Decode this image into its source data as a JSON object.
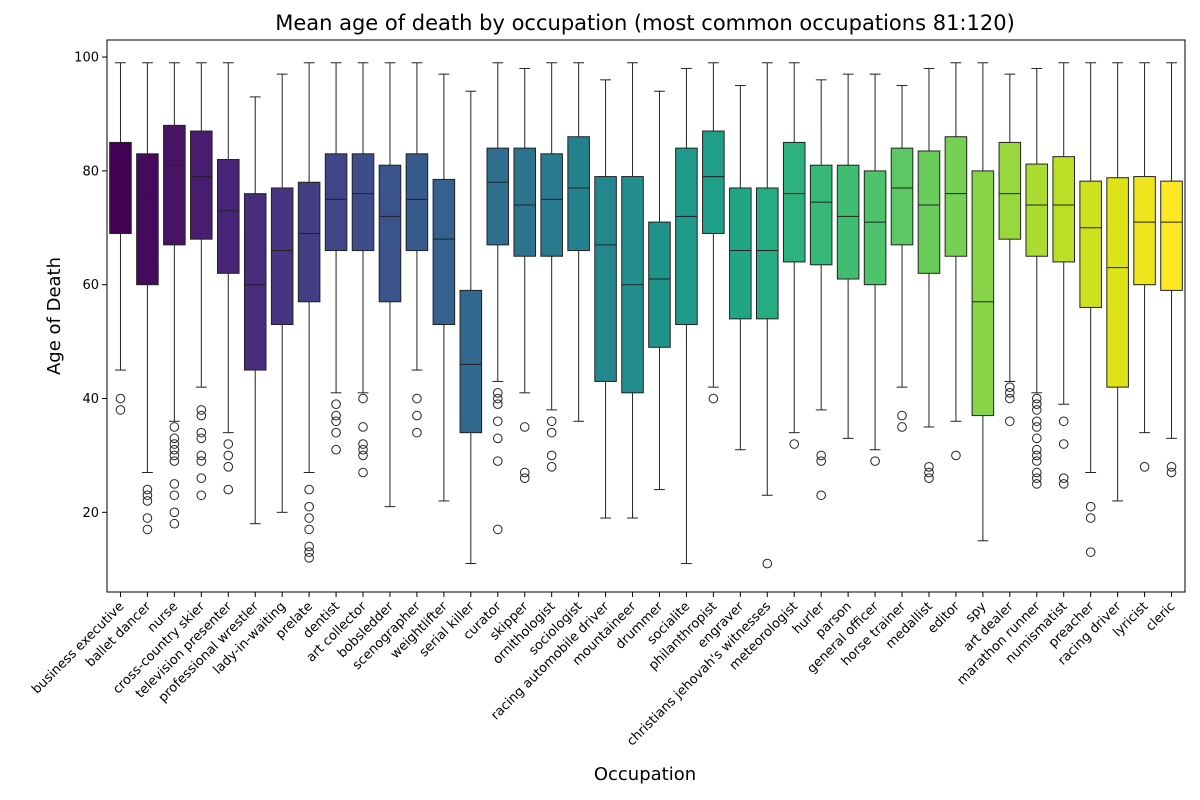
{
  "chart_data": {
    "type": "box",
    "title": "Mean age of death by occupation (most common occupations 81:120)",
    "xlabel": "Occupation",
    "ylabel": "Age of Death",
    "ylim": [
      6,
      103
    ],
    "yticks": [
      20,
      40,
      60,
      80,
      100
    ],
    "grid": false,
    "legend": "none",
    "colormap": "viridis",
    "colors": [
      "#440154",
      "#471365",
      "#482475",
      "#463480",
      "#414487",
      "#3b528b",
      "#355f8d",
      "#2f6c8e",
      "#2a788e",
      "#25848e",
      "#21918c",
      "#1e9c89",
      "#22a884",
      "#2fb47c",
      "#44bf70",
      "#5ec962",
      "#7ad151",
      "#9bd93c",
      "#bddf26",
      "#dfe318",
      "#fde725"
    ],
    "boxes": [
      {
        "category": "business executive",
        "whisker_low": 45,
        "q1": 69,
        "median": 76,
        "q3": 85,
        "whisker_high": 99,
        "outliers": [
          38,
          40
        ]
      },
      {
        "category": "ballet dancer",
        "whisker_low": 27,
        "q1": 60,
        "median": 75,
        "q3": 83,
        "whisker_high": 99,
        "outliers": [
          17,
          19,
          22,
          23,
          24
        ]
      },
      {
        "category": "nurse",
        "whisker_low": 36,
        "q1": 67,
        "median": 81,
        "q3": 88,
        "whisker_high": 99,
        "outliers": [
          18,
          20,
          23,
          25,
          29,
          30,
          31,
          32,
          33,
          35
        ]
      },
      {
        "category": "cross-country skier",
        "whisker_low": 42,
        "q1": 68,
        "median": 79,
        "q3": 87,
        "whisker_high": 99,
        "outliers": [
          23,
          26,
          29,
          30,
          33,
          34,
          37,
          38
        ]
      },
      {
        "category": "television presenter",
        "whisker_low": 34,
        "q1": 62,
        "median": 73,
        "q3": 82,
        "whisker_high": 99,
        "outliers": [
          24,
          28,
          30,
          32
        ]
      },
      {
        "category": "professional wrestler",
        "whisker_low": 18,
        "q1": 45,
        "median": 60,
        "q3": 76,
        "whisker_high": 93,
        "outliers": []
      },
      {
        "category": "lady-in-waiting",
        "whisker_low": 20,
        "q1": 53,
        "median": 66,
        "q3": 77,
        "whisker_high": 97,
        "outliers": []
      },
      {
        "category": "prelate",
        "whisker_low": 27,
        "q1": 57,
        "median": 69,
        "q3": 78,
        "whisker_high": 99,
        "outliers": [
          12,
          13,
          14,
          17,
          19,
          21,
          24
        ]
      },
      {
        "category": "dentist",
        "whisker_low": 41,
        "q1": 66,
        "median": 75,
        "q3": 83,
        "whisker_high": 99,
        "outliers": [
          31,
          34,
          36,
          37,
          39
        ]
      },
      {
        "category": "art collector",
        "whisker_low": 41,
        "q1": 66,
        "median": 76,
        "q3": 83,
        "whisker_high": 99,
        "outliers": [
          27,
          30,
          31,
          32,
          35,
          40
        ]
      },
      {
        "category": "bobsledder",
        "whisker_low": 21,
        "q1": 57,
        "median": 72,
        "q3": 81,
        "whisker_high": 99,
        "outliers": []
      },
      {
        "category": "scenographer",
        "whisker_low": 45,
        "q1": 66,
        "median": 75,
        "q3": 83,
        "whisker_high": 99,
        "outliers": [
          34,
          37,
          40
        ]
      },
      {
        "category": "weightlifter",
        "whisker_low": 22,
        "q1": 53,
        "median": 68,
        "q3": 78.5,
        "whisker_high": 97,
        "outliers": []
      },
      {
        "category": "serial killer",
        "whisker_low": 11,
        "q1": 34,
        "median": 46,
        "q3": 59,
        "whisker_high": 94,
        "outliers": []
      },
      {
        "category": "curator",
        "whisker_low": 43,
        "q1": 67,
        "median": 78,
        "q3": 84,
        "whisker_high": 99,
        "outliers": [
          17,
          29,
          33,
          36,
          39,
          40,
          41
        ]
      },
      {
        "category": "skipper",
        "whisker_low": 41,
        "q1": 65,
        "median": 74,
        "q3": 84,
        "whisker_high": 98,
        "outliers": [
          26,
          27,
          35
        ]
      },
      {
        "category": "ornithologist",
        "whisker_low": 38,
        "q1": 65,
        "median": 75,
        "q3": 83,
        "whisker_high": 99,
        "outliers": [
          28,
          30,
          34,
          36
        ]
      },
      {
        "category": "sociologist",
        "whisker_low": 36,
        "q1": 66,
        "median": 77,
        "q3": 86,
        "whisker_high": 99,
        "outliers": []
      },
      {
        "category": "racing automobile driver",
        "whisker_low": 19,
        "q1": 43,
        "median": 67,
        "q3": 79,
        "whisker_high": 96,
        "outliers": []
      },
      {
        "category": "mountaineer",
        "whisker_low": 19,
        "q1": 41,
        "median": 60,
        "q3": 79,
        "whisker_high": 99,
        "outliers": []
      },
      {
        "category": "drummer",
        "whisker_low": 24,
        "q1": 49,
        "median": 61,
        "q3": 71,
        "whisker_high": 94,
        "outliers": []
      },
      {
        "category": "socialite",
        "whisker_low": 11,
        "q1": 53,
        "median": 72,
        "q3": 84,
        "whisker_high": 98,
        "outliers": []
      },
      {
        "category": "philanthropist",
        "whisker_low": 42,
        "q1": 69,
        "median": 79,
        "q3": 87,
        "whisker_high": 99,
        "outliers": [
          40
        ]
      },
      {
        "category": "engraver",
        "whisker_low": 31,
        "q1": 54,
        "median": 66,
        "q3": 77,
        "whisker_high": 95,
        "outliers": []
      },
      {
        "category": "christians jehovah's witnesses",
        "whisker_low": 23,
        "q1": 54,
        "median": 66,
        "q3": 77,
        "whisker_high": 99,
        "outliers": [
          11
        ]
      },
      {
        "category": "meteorologist",
        "whisker_low": 34,
        "q1": 64,
        "median": 76,
        "q3": 85,
        "whisker_high": 99,
        "outliers": [
          32
        ]
      },
      {
        "category": "hurler",
        "whisker_low": 38,
        "q1": 63.5,
        "median": 74.5,
        "q3": 81,
        "whisker_high": 96,
        "outliers": [
          23,
          29,
          30
        ]
      },
      {
        "category": "parson",
        "whisker_low": 33,
        "q1": 61,
        "median": 72,
        "q3": 81,
        "whisker_high": 97,
        "outliers": []
      },
      {
        "category": "general officer",
        "whisker_low": 31,
        "q1": 60,
        "median": 71,
        "q3": 80,
        "whisker_high": 97,
        "outliers": [
          29
        ]
      },
      {
        "category": "horse trainer",
        "whisker_low": 42,
        "q1": 67,
        "median": 77,
        "q3": 84,
        "whisker_high": 95,
        "outliers": [
          35,
          37
        ]
      },
      {
        "category": "medallist",
        "whisker_low": 35,
        "q1": 62,
        "median": 74,
        "q3": 83.5,
        "whisker_high": 98,
        "outliers": [
          26,
          27,
          28
        ]
      },
      {
        "category": "editor",
        "whisker_low": 36,
        "q1": 65,
        "median": 76,
        "q3": 86,
        "whisker_high": 99,
        "outliers": [
          30
        ]
      },
      {
        "category": "spy",
        "whisker_low": 15,
        "q1": 37,
        "median": 57,
        "q3": 80,
        "whisker_high": 99,
        "outliers": []
      },
      {
        "category": "art dealer",
        "whisker_low": 43,
        "q1": 68,
        "median": 76,
        "q3": 85,
        "whisker_high": 97,
        "outliers": [
          36,
          40,
          41,
          42
        ]
      },
      {
        "category": "marathon runner",
        "whisker_low": 41,
        "q1": 65,
        "median": 74,
        "q3": 81.2,
        "whisker_high": 98,
        "outliers": [
          25,
          26,
          27,
          29,
          30,
          31,
          33,
          35,
          36,
          38,
          39,
          40
        ]
      },
      {
        "category": "numismatist",
        "whisker_low": 39,
        "q1": 64,
        "median": 74,
        "q3": 82.5,
        "whisker_high": 99,
        "outliers": [
          25,
          26,
          32,
          36
        ]
      },
      {
        "category": "preacher",
        "whisker_low": 27,
        "q1": 56,
        "median": 70,
        "q3": 78.2,
        "whisker_high": 99,
        "outliers": [
          13,
          19,
          21
        ]
      },
      {
        "category": "racing driver",
        "whisker_low": 22,
        "q1": 42,
        "median": 63,
        "q3": 78.8,
        "whisker_high": 99,
        "outliers": []
      },
      {
        "category": "lyricist",
        "whisker_low": 34,
        "q1": 60,
        "median": 71,
        "q3": 79,
        "whisker_high": 99,
        "outliers": [
          28
        ]
      },
      {
        "category": "cleric",
        "whisker_low": 33,
        "q1": 59,
        "median": 71,
        "q3": 78.2,
        "whisker_high": 99,
        "outliers": [
          27,
          28
        ]
      }
    ]
  }
}
